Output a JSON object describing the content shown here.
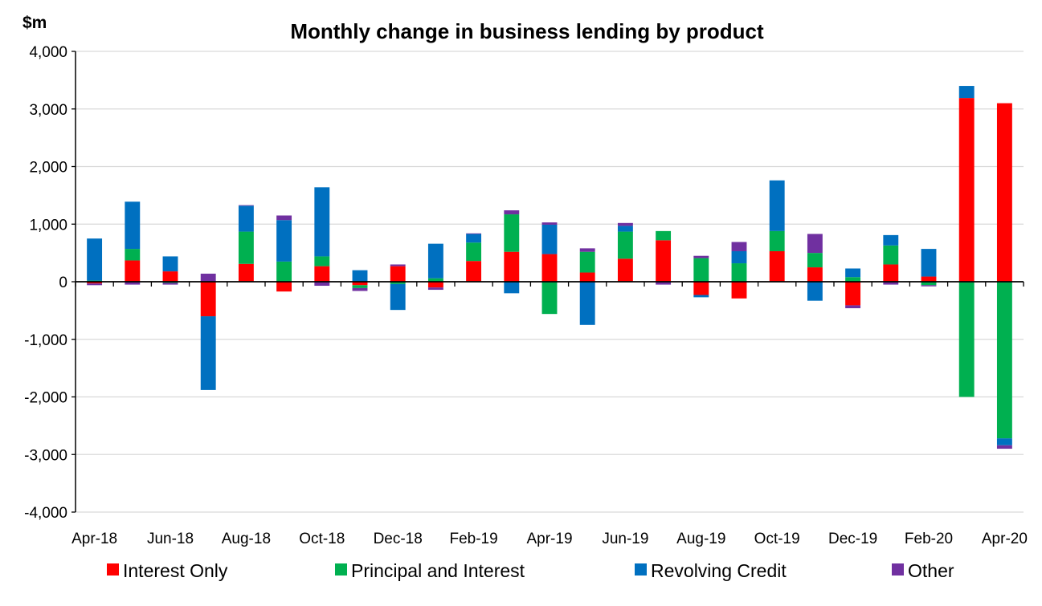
{
  "chart_data": {
    "type": "bar",
    "stacked": true,
    "title": "Monthly change in business lending by product",
    "unit_label": "$m",
    "xlabel": "",
    "ylabel": "",
    "ylim": [
      -4000,
      4000
    ],
    "yticks": [
      4000,
      3000,
      2000,
      1000,
      0,
      -1000,
      -2000,
      -3000,
      -4000
    ],
    "ytick_labels": [
      "4,000",
      "3,000",
      "2,000",
      "1,000",
      "0",
      "-1,000",
      "-2,000",
      "-3,000",
      "-4,000"
    ],
    "grid": true,
    "legend_position": "bottom",
    "categories": [
      "Apr-18",
      "May-18",
      "Jun-18",
      "Jul-18",
      "Aug-18",
      "Sep-18",
      "Oct-18",
      "Nov-18",
      "Dec-18",
      "Jan-19",
      "Feb-19",
      "Mar-19",
      "Apr-19",
      "May-19",
      "Jun-19",
      "Jul-19",
      "Aug-19",
      "Sep-19",
      "Oct-19",
      "Nov-19",
      "Dec-19",
      "Jan-20",
      "Feb-20",
      "Mar-20",
      "Apr-20"
    ],
    "tick_labels": [
      "Apr-18",
      "Jun-18",
      "Aug-18",
      "Oct-18",
      "Dec-18",
      "Feb-19",
      "Apr-19",
      "Jun-19",
      "Aug-19",
      "Oct-19",
      "Dec-19",
      "Feb-20",
      "Apr-20"
    ],
    "series": [
      {
        "name": "Interest Only",
        "color": "#ff0000",
        "values": [
          -30,
          370,
          180,
          -600,
          310,
          -170,
          270,
          -60,
          270,
          -100,
          360,
          520,
          480,
          160,
          400,
          720,
          -230,
          -290,
          530,
          250,
          -410,
          300,
          90,
          3190,
          3100
        ]
      },
      {
        "name": "Principal and Interest",
        "color": "#00b050",
        "values": [
          20,
          200,
          -20,
          0,
          560,
          350,
          170,
          -50,
          -40,
          60,
          320,
          650,
          -560,
          360,
          470,
          160,
          410,
          320,
          350,
          250,
          80,
          330,
          -60,
          -2000,
          -2720
        ]
      },
      {
        "name": "Revolving Credit",
        "color": "#0070c0",
        "values": [
          730,
          820,
          260,
          -1280,
          450,
          720,
          1200,
          200,
          -450,
          600,
          150,
          -200,
          510,
          -750,
          100,
          0,
          -40,
          210,
          880,
          -330,
          150,
          180,
          480,
          210,
          -120
        ]
      },
      {
        "name": "Other",
        "color": "#7030a0",
        "values": [
          -30,
          -50,
          -30,
          140,
          10,
          80,
          -70,
          -50,
          30,
          -40,
          10,
          70,
          40,
          60,
          50,
          -50,
          40,
          160,
          0,
          330,
          -50,
          -50,
          -20,
          0,
          -60
        ]
      }
    ]
  }
}
